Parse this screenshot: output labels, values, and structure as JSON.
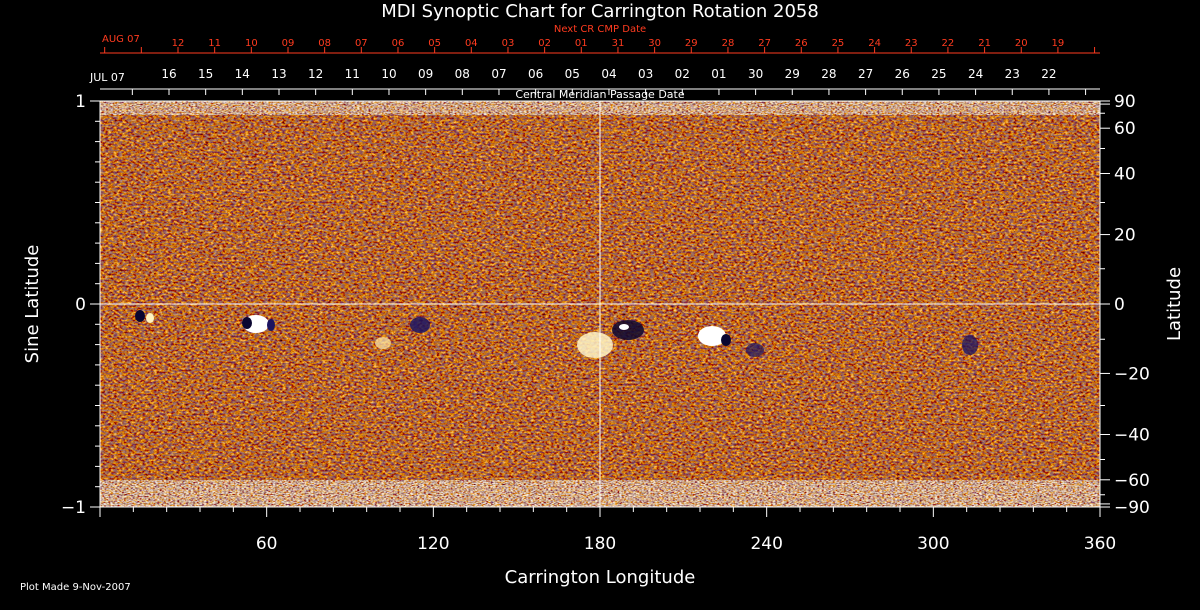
{
  "chart_data": {
    "type": "heatmap",
    "title": "MDI Synoptic Chart for Carrington Rotation 2058",
    "next_cr_label": "Next CR CMP Date",
    "cmp_label": "Central Meridian Passage Date",
    "xlabel": "Carrington Longitude",
    "ylabel_left": "Sine Latitude",
    "ylabel_right": "Latitude",
    "xlim": [
      0,
      360
    ],
    "ylim": [
      -1,
      1
    ],
    "x_ticks": [
      "60",
      "120",
      "180",
      "240",
      "300",
      "360"
    ],
    "y_left_ticks": [
      "1",
      "0",
      "−1"
    ],
    "y_right_ticks": [
      "90",
      "60",
      "40",
      "20",
      "0",
      "−20",
      "−40",
      "−60",
      "−90"
    ],
    "next_cr_month_label": "AUG 07",
    "next_cr_dates": [
      "12",
      "11",
      "10",
      "09",
      "08",
      "07",
      "06",
      "05",
      "04",
      "03",
      "02",
      "01",
      "31",
      "30",
      "29",
      "28",
      "27",
      "26",
      "25",
      "24",
      "23",
      "22",
      "21",
      "20",
      "19"
    ],
    "cmp_month_label": "JUL 07",
    "cmp_dates": [
      "16",
      "15",
      "14",
      "13",
      "12",
      "11",
      "10",
      "09",
      "08",
      "07",
      "06",
      "05",
      "04",
      "03",
      "02",
      "01",
      "30",
      "29",
      "28",
      "27",
      "26",
      "25",
      "24",
      "23",
      "22"
    ],
    "grid_lines": [
      "longitude 180",
      "latitude 0"
    ],
    "colors": {
      "background": "#000000",
      "field": "#e0531b",
      "positive": "#ffffff",
      "negative": "#1c1460",
      "date_scale": "#ff3b1f"
    }
  },
  "footer": {
    "plot_made": "Plot Made  9-Nov-2007"
  }
}
